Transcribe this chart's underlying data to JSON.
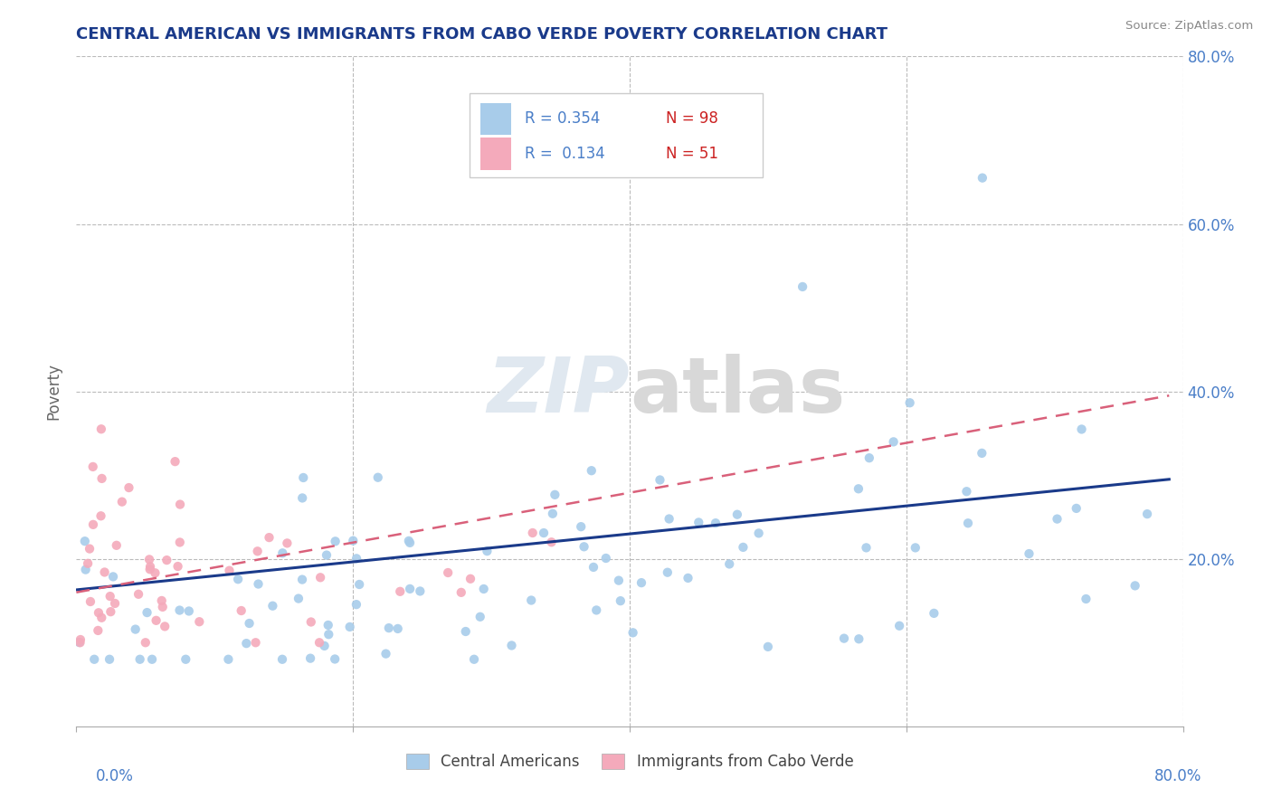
{
  "title": "CENTRAL AMERICAN VS IMMIGRANTS FROM CABO VERDE POVERTY CORRELATION CHART",
  "source": "Source: ZipAtlas.com",
  "ylabel": "Poverty",
  "xlim": [
    0.0,
    0.8
  ],
  "ylim": [
    0.0,
    0.8
  ],
  "watermark": "ZIPatlas",
  "legend_r1": "R = 0.354",
  "legend_n1": "N = 98",
  "legend_r2": "R = 0.134",
  "legend_n2": "N = 51",
  "color_blue": "#A8CCEA",
  "color_pink": "#F4AABB",
  "color_line_blue": "#1A3A8A",
  "color_line_pink": "#D9607A",
  "title_color": "#1A3A8A",
  "tick_color_right": "#4A7EC8",
  "tick_color_red": "#CC2222",
  "background_color": "#FFFFFF",
  "grid_color": "#BBBBBB",
  "watermark_color": "#DDDDDD"
}
